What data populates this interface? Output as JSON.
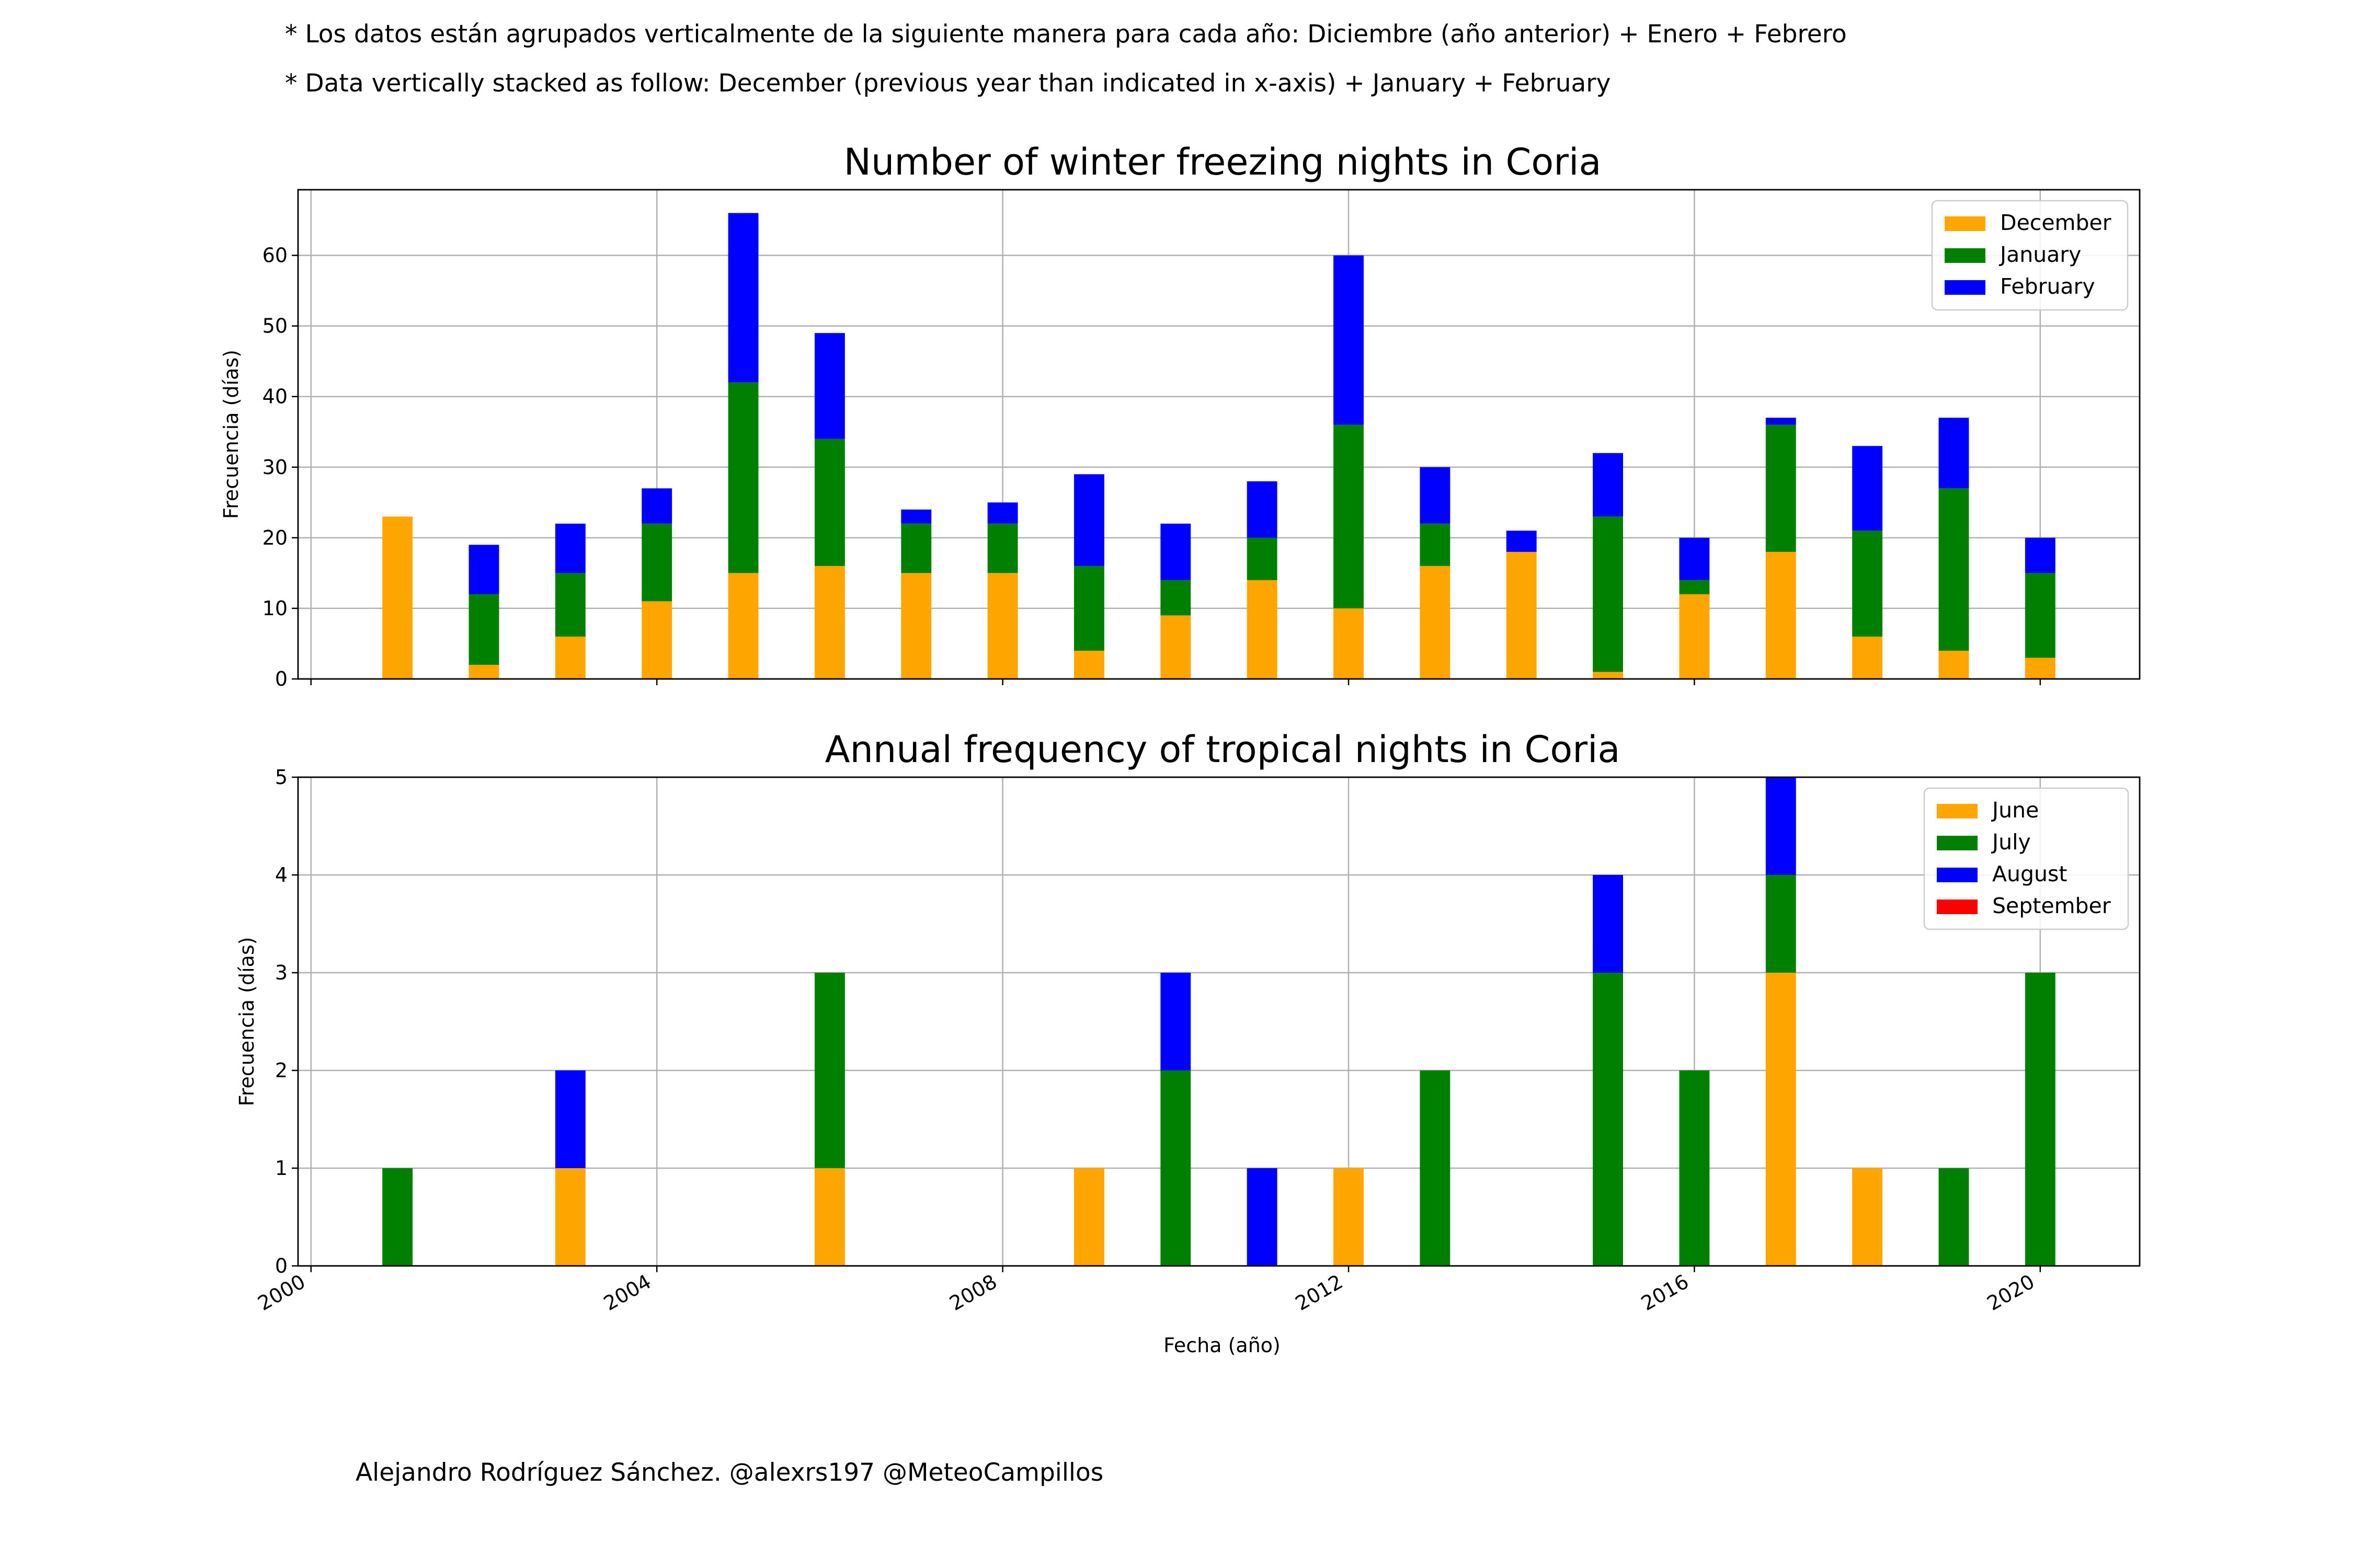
{
  "header": {
    "note_es": "* Los datos están agrupados verticalmente de la siguiente manera para cada año: Diciembre (año anterior) + Enero  + Febrero",
    "note_en": "* Data vertically stacked as follow: December (previous year than indicated in x-axis) + January  + February"
  },
  "credit": "Alejandro Rodríguez Sánchez. @alexrs197 @MeteoCampillos",
  "chart_data": [
    {
      "type": "bar",
      "stacked": true,
      "title": "Number of winter freezing nights in Coria",
      "xlabel": "",
      "ylabel": "Frecuencia (días)",
      "xlim": [
        1999.85,
        2021.15
      ],
      "ylim": [
        0,
        69.3
      ],
      "x_ticks": [
        "2000",
        "2004",
        "2008",
        "2012",
        "2016",
        "2020"
      ],
      "y_ticks": [
        0,
        10,
        20,
        30,
        40,
        50,
        60
      ],
      "grid": true,
      "legend_position": "top-right",
      "x": [
        2001,
        2002,
        2003,
        2004,
        2005,
        2006,
        2007,
        2008,
        2009,
        2010,
        2011,
        2012,
        2013,
        2014,
        2015,
        2016,
        2017,
        2018,
        2019,
        2020
      ],
      "series": [
        {
          "name": "December",
          "color": "#ffa500",
          "values": [
            23,
            2,
            6,
            11,
            15,
            16,
            15,
            15,
            4,
            9,
            14,
            10,
            16,
            18,
            1,
            12,
            18,
            6,
            4,
            3
          ]
        },
        {
          "name": "January",
          "color": "#008000",
          "values": [
            0,
            10,
            9,
            11,
            27,
            18,
            7,
            7,
            12,
            5,
            6,
            26,
            6,
            0,
            22,
            2,
            18,
            15,
            23,
            12
          ]
        },
        {
          "name": "February",
          "color": "#0000ff",
          "values": [
            0,
            7,
            7,
            5,
            24,
            15,
            2,
            3,
            13,
            8,
            8,
            24,
            8,
            3,
            9,
            6,
            1,
            12,
            10,
            5
          ]
        }
      ]
    },
    {
      "type": "bar",
      "stacked": true,
      "title": "Annual frequency of tropical nights in Coria",
      "xlabel": "Fecha (año)",
      "ylabel": "Frecuencia (días)",
      "xlim": [
        1999.85,
        2021.15
      ],
      "ylim": [
        0,
        5
      ],
      "x_ticks": [
        "2000",
        "2004",
        "2008",
        "2012",
        "2016",
        "2020"
      ],
      "y_ticks": [
        0,
        1,
        2,
        3,
        4,
        5
      ],
      "grid": true,
      "legend_position": "top-right",
      "x": [
        2001,
        2002,
        2003,
        2004,
        2005,
        2006,
        2007,
        2008,
        2009,
        2010,
        2011,
        2012,
        2013,
        2014,
        2015,
        2016,
        2017,
        2018,
        2019,
        2020
      ],
      "series": [
        {
          "name": "June",
          "color": "#ffa500",
          "values": [
            0,
            0,
            1,
            0,
            0,
            1,
            0,
            0,
            1,
            0,
            0,
            1,
            0,
            0,
            0,
            0,
            3,
            1,
            0,
            0
          ]
        },
        {
          "name": "July",
          "color": "#008000",
          "values": [
            1,
            0,
            0,
            0,
            0,
            2,
            0,
            0,
            0,
            2,
            0,
            0,
            2,
            0,
            3,
            2,
            1,
            0,
            1,
            3
          ]
        },
        {
          "name": "August",
          "color": "#0000ff",
          "values": [
            0,
            0,
            1,
            0,
            0,
            0,
            0,
            0,
            0,
            1,
            1,
            0,
            0,
            0,
            1,
            0,
            1,
            0,
            0,
            0
          ]
        },
        {
          "name": "September",
          "color": "#ff0000",
          "values": [
            0,
            0,
            0,
            0,
            0,
            0,
            0,
            0,
            0,
            0,
            0,
            0,
            0,
            0,
            0,
            0,
            0,
            0,
            0,
            0
          ]
        }
      ]
    }
  ]
}
